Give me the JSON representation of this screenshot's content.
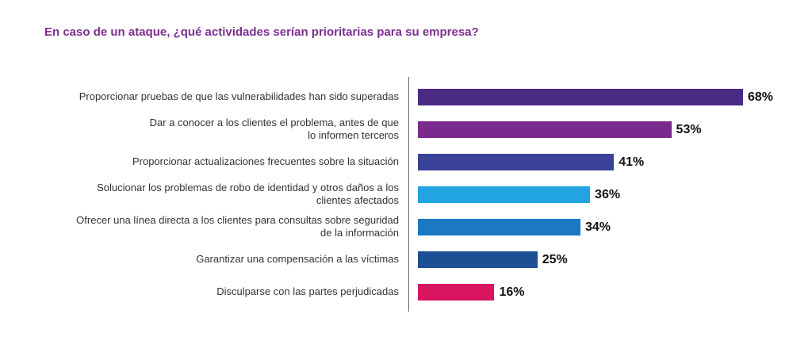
{
  "chart_data": {
    "type": "bar",
    "orientation": "horizontal",
    "title": "En caso de un ataque, ¿qué actividades serían prioritarias para su empresa?",
    "categories": [
      "Proporcionar pruebas de que las vulnerabilidades han sido superadas",
      "Dar a conocer a los clientes el problema, antes de que\nlo informen terceros",
      "Proporcionar actualizaciones frecuentes sobre la situación",
      "Solucionar los problemas de robo de identidad y otros daños a los\nclientes afectados",
      "Ofrecer una línea directa a los clientes para consultas sobre seguridad\nde la información",
      "Garantizar una compensación a las víctimas",
      "Disculparse con las partes perjudicadas"
    ],
    "values": [
      68,
      53,
      41,
      36,
      34,
      25,
      16
    ],
    "value_labels": [
      "68%",
      "53%",
      "41%",
      "36%",
      "34%",
      "25%",
      "16%"
    ],
    "colors": [
      "#4b2a84",
      "#7a2a8c",
      "#3a4199",
      "#22a4e0",
      "#1b78c2",
      "#1d4f95",
      "#d8145e"
    ]
  }
}
